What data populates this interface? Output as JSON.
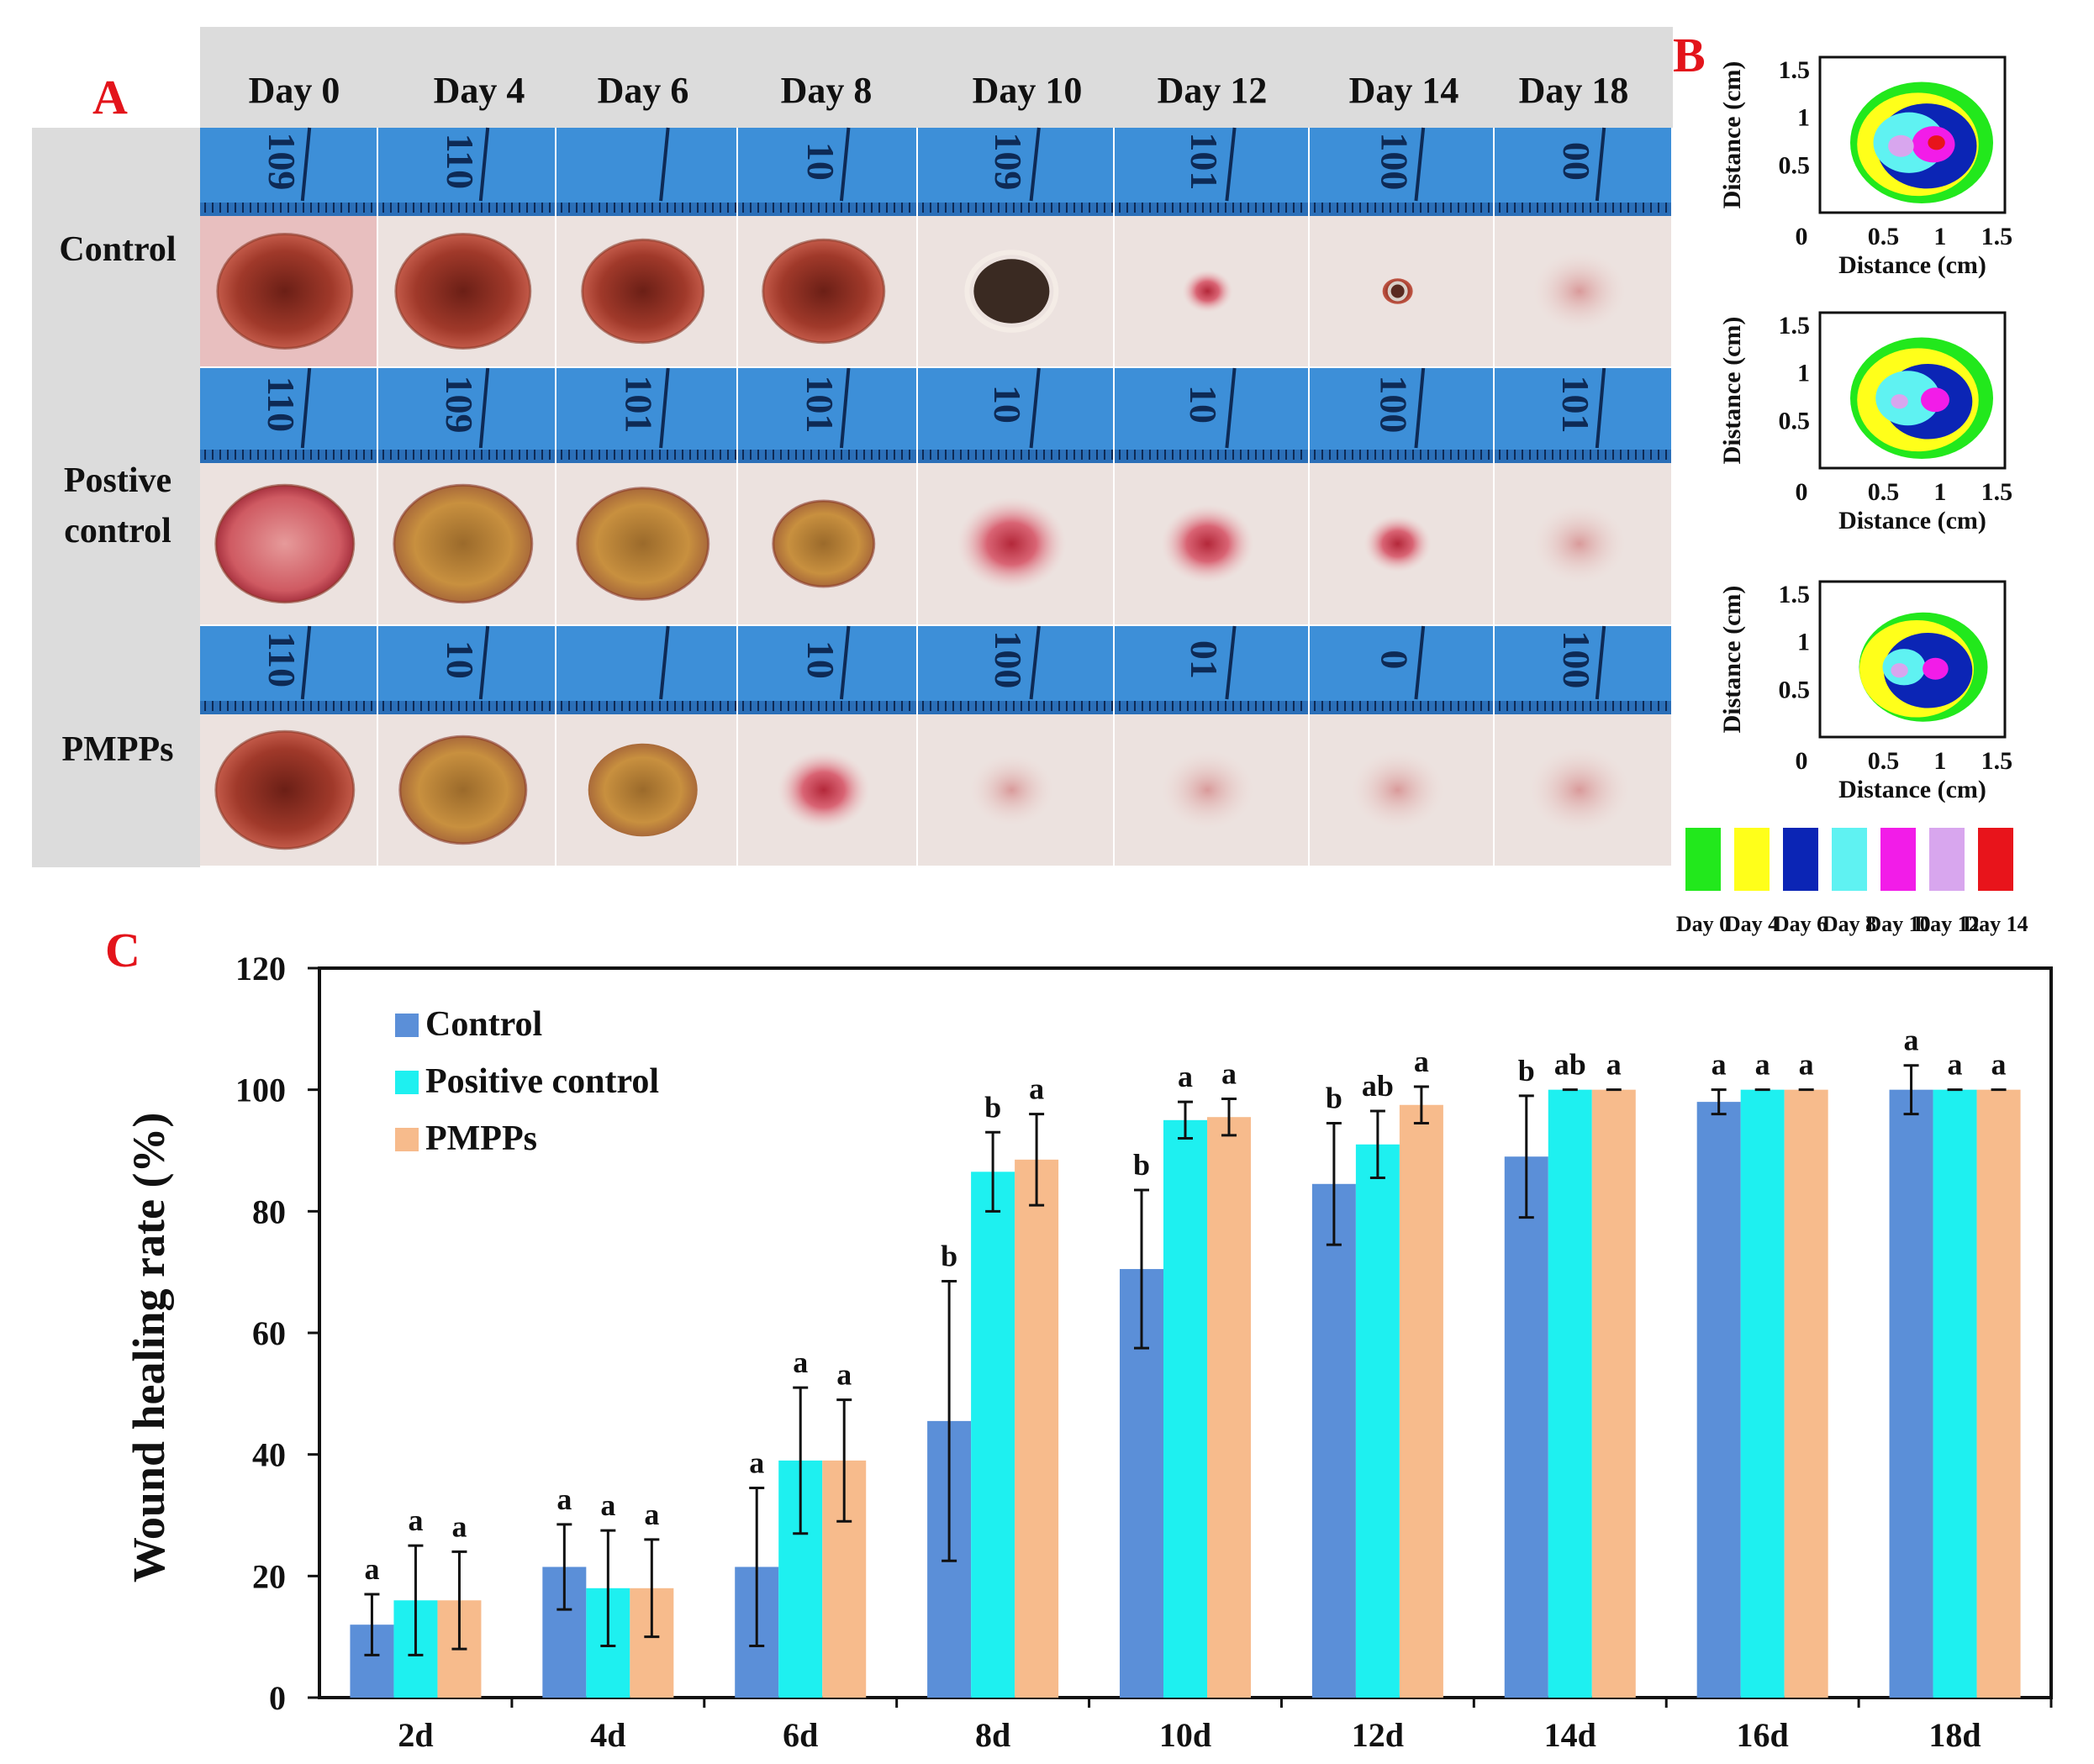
{
  "panel_a": {
    "letter": "A",
    "columns": [
      "Day 0",
      "Day 4",
      "Day 6",
      "Day 8",
      "Day 10",
      "Day 12",
      "Day 14",
      "Day 18"
    ],
    "rows": [
      {
        "label_lines": [
          "Control"
        ]
      },
      {
        "label_lines": [
          "Postive",
          "control"
        ]
      },
      {
        "label_lines": [
          "PMPPs"
        ]
      }
    ],
    "ruler_numbers": [
      [
        "109",
        "110",
        "",
        "10",
        "109",
        "101",
        "100",
        "00"
      ],
      [
        "110",
        "109",
        "101",
        "101",
        "10",
        "10",
        "100",
        "101"
      ],
      [
        "110",
        "10",
        "",
        "10",
        "100",
        "01",
        "0",
        "100"
      ]
    ]
  },
  "panel_b": {
    "letter": "B",
    "x_label": "Distance (cm)",
    "y_label": "Distance (cm)",
    "x_ticks": [
      "0",
      "0.5",
      "1",
      "1.5"
    ],
    "y_ticks": [
      "0.5",
      "1",
      "1.5"
    ],
    "legend": [
      {
        "label": "Day 0",
        "color": "#22e81c"
      },
      {
        "label": "Day 4",
        "color": "#ffff1a"
      },
      {
        "label": "Day 6",
        "color": "#0b25b5"
      },
      {
        "label": "Day 8",
        "color": "#5ff2f2"
      },
      {
        "label": "Day 10",
        "color": "#f21ce8"
      },
      {
        "label": "Day 12",
        "color": "#d8a6ee"
      },
      {
        "label": "Day 14",
        "color": "#e8141b"
      }
    ]
  },
  "panel_c": {
    "letter": "C"
  },
  "chart_data": {
    "type": "bar",
    "title": "",
    "xlabel": "",
    "ylabel": "Wound healing rate (%)",
    "ylim": [
      0,
      120
    ],
    "yticks": [
      "0",
      "20",
      "40",
      "60",
      "80",
      "100",
      "120"
    ],
    "categories": [
      "2d",
      "4d",
      "6d",
      "8d",
      "10d",
      "12d",
      "14d",
      "16d",
      "18d"
    ],
    "series": [
      {
        "name": "Control",
        "color": "#5b8fd8",
        "values": [
          12,
          21.5,
          21.5,
          45.5,
          70.5,
          84.5,
          89,
          98,
          100
        ],
        "errors": [
          5,
          7,
          13,
          23,
          13,
          10,
          10,
          2,
          4
        ],
        "letters": [
          "a",
          "a",
          "a",
          "b",
          "b",
          "b",
          "b",
          "a",
          "a"
        ]
      },
      {
        "name": "Positive control",
        "color": "#1ef0f0",
        "values": [
          16,
          18,
          39,
          86.5,
          95,
          91,
          100,
          100,
          100
        ],
        "errors": [
          9,
          9.5,
          12,
          6.5,
          3,
          5.5,
          0,
          0,
          0
        ],
        "letters": [
          "a",
          "a",
          "a",
          "b",
          "a",
          "ab",
          "ab",
          "a",
          "a"
        ]
      },
      {
        "name": "PMPPs",
        "color": "#f7bb8c",
        "values": [
          16,
          18,
          39,
          88.5,
          95.5,
          97.5,
          100,
          100,
          100
        ],
        "errors": [
          8,
          8,
          10,
          7.5,
          3,
          3,
          0,
          0,
          0
        ],
        "letters": [
          "a",
          "a",
          "a",
          "a",
          "a",
          "a",
          "a",
          "a",
          "a"
        ]
      }
    ],
    "legend_position": "top-left"
  }
}
